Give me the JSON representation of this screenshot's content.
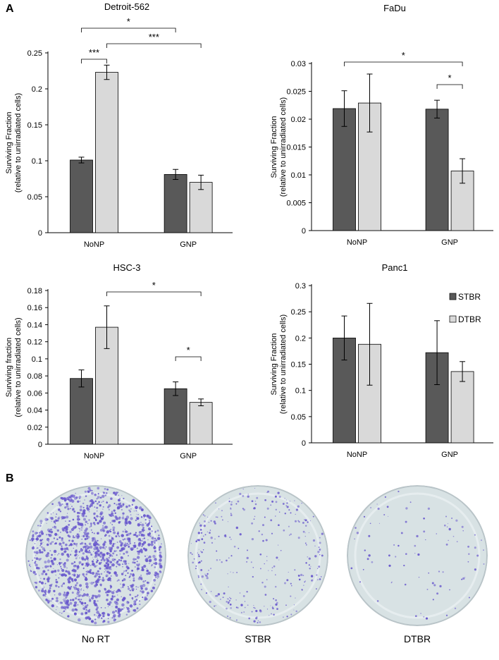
{
  "panel_labels": {
    "a": "A",
    "b": "B"
  },
  "legend": {
    "series": [
      "STBR",
      "DTBR"
    ],
    "colors": [
      "#595959",
      "#d9d9d9"
    ]
  },
  "chart_data": [
    {
      "type": "bar",
      "title": "Detroit-562",
      "ylabel_line1": "Surviving Fraction",
      "ylabel_line2": "(relative to unirradiated cells)",
      "categories": [
        "NoNP",
        "GNP"
      ],
      "ylim": [
        0,
        0.25
      ],
      "yticks": [
        "0",
        "0.05",
        "0.1",
        "0.15",
        "0.2",
        "0.25"
      ],
      "ytick_values": [
        0,
        0.05,
        0.1,
        0.15,
        0.2,
        0.25
      ],
      "series": [
        {
          "name": "STBR",
          "values": [
            0.101,
            0.081
          ],
          "errors": [
            0.004,
            0.007
          ]
        },
        {
          "name": "DTBR",
          "values": [
            0.223,
            0.07
          ],
          "errors": [
            0.01,
            0.01
          ]
        }
      ],
      "significance": [
        {
          "label": "*",
          "from": [
            0,
            0
          ],
          "to": [
            1,
            0
          ]
        },
        {
          "label": "***",
          "from": [
            0,
            1
          ],
          "to": [
            1,
            1
          ]
        },
        {
          "label": "***",
          "from": [
            0,
            0
          ],
          "to": [
            0,
            1
          ]
        }
      ]
    },
    {
      "type": "bar",
      "title": "FaDu",
      "ylabel_line1": "Surviving Fraction",
      "ylabel_line2": "(relative to unirradiated cells)",
      "categories": [
        "NoNP",
        "GNP"
      ],
      "ylim": [
        0,
        0.03
      ],
      "yticks": [
        "0",
        "0.005",
        "0.01",
        "0.015",
        "0.02",
        "0.025",
        "0.03"
      ],
      "ytick_values": [
        0,
        0.005,
        0.01,
        0.015,
        0.02,
        0.025,
        0.03
      ],
      "series": [
        {
          "name": "STBR",
          "values": [
            0.0219,
            0.0218
          ],
          "errors": [
            0.0032,
            0.0016
          ]
        },
        {
          "name": "DTBR",
          "values": [
            0.0229,
            0.0107
          ],
          "errors": [
            0.0052,
            0.0022
          ]
        }
      ],
      "significance": [
        {
          "label": "*",
          "from": [
            0,
            0
          ],
          "to": [
            1,
            1
          ]
        },
        {
          "label": "*",
          "from": [
            1,
            0
          ],
          "to": [
            1,
            1
          ]
        }
      ]
    },
    {
      "type": "bar",
      "title": "HSC-3",
      "ylabel_line1": "Surviving fraction",
      "ylabel_line2": "(relative to unirradiated cells)",
      "categories": [
        "NoNP",
        "GNP"
      ],
      "ylim": [
        0,
        0.18
      ],
      "yticks": [
        "0",
        "0.02",
        "0.04",
        "0.06",
        "0.08",
        "0.1",
        "0.12",
        "0.14",
        "0.16",
        "0.18"
      ],
      "ytick_values": [
        0,
        0.02,
        0.04,
        0.06,
        0.08,
        0.1,
        0.12,
        0.14,
        0.16,
        0.18
      ],
      "series": [
        {
          "name": "STBR",
          "values": [
            0.077,
            0.065
          ],
          "errors": [
            0.01,
            0.008
          ]
        },
        {
          "name": "DTBR",
          "values": [
            0.137,
            0.049
          ],
          "errors": [
            0.025,
            0.004
          ]
        }
      ],
      "significance": [
        {
          "label": "*",
          "from": [
            0,
            1
          ],
          "to": [
            1,
            1
          ]
        },
        {
          "label": "*",
          "from": [
            1,
            0
          ],
          "to": [
            1,
            1
          ]
        }
      ]
    },
    {
      "type": "bar",
      "title": "Panc1",
      "ylabel_line1": "Surviving Fraction",
      "ylabel_line2": "(relative to unirradiated cells)",
      "categories": [
        "NoNP",
        "GNP"
      ],
      "ylim": [
        0,
        0.3
      ],
      "yticks": [
        "0",
        "0.05",
        "0.1",
        "0.15",
        "0.2",
        "0.25",
        "0.3"
      ],
      "ytick_values": [
        0,
        0.05,
        0.1,
        0.15,
        0.2,
        0.25,
        0.3
      ],
      "series": [
        {
          "name": "STBR",
          "values": [
            0.2,
            0.172
          ],
          "errors": [
            0.042,
            0.061
          ]
        },
        {
          "name": "DTBR",
          "values": [
            0.188,
            0.136
          ],
          "errors": [
            0.078,
            0.019
          ]
        }
      ],
      "legend": "right",
      "significance": []
    }
  ],
  "dishes": [
    {
      "label": "No RT",
      "density": "high"
    },
    {
      "label": "STBR",
      "density": "medium"
    },
    {
      "label": "DTBR",
      "density": "low"
    }
  ],
  "colors": {
    "dish_bg": "#d8e2e4",
    "colony": "#6a5acd",
    "axis": "#000000",
    "error_bar": "#000000"
  }
}
